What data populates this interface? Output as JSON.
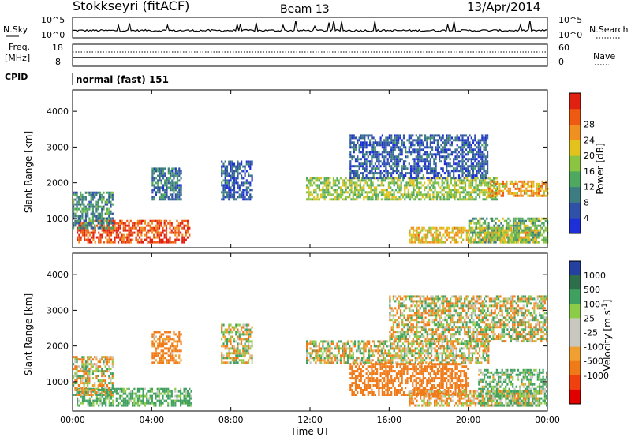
{
  "header": {
    "station": "Stokkseyri (fitACF)",
    "beam": "Beam 13",
    "date": "13/Apr/2014"
  },
  "noise_panel": {
    "left_label": "N.Sky",
    "left_ticks": [
      "10^5",
      "10^0"
    ],
    "right_ticks": [
      "10^5",
      "10^0"
    ],
    "right_label": "N.Search"
  },
  "freq_panel": {
    "label_line1": "Freq.",
    "label_line2": "[MHz]",
    "left_ticks": [
      "18",
      "8"
    ],
    "right_ticks": [
      "60",
      "0"
    ],
    "right_label": "Nave",
    "cpid_label": "CPID",
    "program": "normal (fast) 151"
  },
  "colors": {
    "power_scale": [
      "#1f2fd8",
      "#2f52a8",
      "#3d7c80",
      "#4fa860",
      "#8bc440",
      "#e3c21e",
      "#f09020",
      "#ef5a12",
      "#e02010"
    ],
    "velocity_scale": [
      "#2640a0",
      "#2f6e4a",
      "#3fa060",
      "#8ccc48",
      "#c8c8c0",
      "#c8c8c0",
      "#f0a030",
      "#f07a18",
      "#f04010",
      "#e00000"
    ],
    "ground_scatter": "#c0c0b8"
  },
  "chart_data": [
    {
      "type": "heatmap",
      "title": "",
      "xlabel": "Time UT",
      "ylabel": "Slant Range [km]",
      "x_ticks": [
        "00:00",
        "04:00",
        "08:00",
        "12:00",
        "16:00",
        "20:00",
        "00:00"
      ],
      "y_ticks": [
        "1000",
        "2000",
        "3000",
        "4000"
      ],
      "xlim_hours": [
        0,
        24
      ],
      "ylim_km": [
        180,
        4600
      ],
      "colorbar_label": "Power [dB]",
      "colorbar_ticks": [
        "4",
        "8",
        "12",
        "16",
        "20",
        "24",
        "28"
      ],
      "colorbar_range": [
        0,
        32
      ],
      "regions": [
        {
          "t0": 0.2,
          "t1": 5.9,
          "r0": 300,
          "r1": 900,
          "level": 28
        },
        {
          "t0": 0.0,
          "t1": 2.0,
          "r0": 700,
          "r1": 1700,
          "level": 10
        },
        {
          "t0": 4.0,
          "t1": 5.5,
          "r0": 1500,
          "r1": 2400,
          "level": 8
        },
        {
          "t0": 7.5,
          "t1": 9.1,
          "r0": 1500,
          "r1": 2600,
          "level": 6
        },
        {
          "t0": 11.8,
          "t1": 21.5,
          "r0": 1500,
          "r1": 2100,
          "level": 16
        },
        {
          "t0": 14.0,
          "t1": 21.0,
          "r0": 2100,
          "r1": 3300,
          "level": 6
        },
        {
          "t0": 17.0,
          "t1": 23.5,
          "r0": 300,
          "r1": 700,
          "level": 20
        },
        {
          "t0": 20.0,
          "t1": 24.0,
          "r0": 300,
          "r1": 1000,
          "level": 14
        },
        {
          "t0": 21.0,
          "t1": 24.0,
          "r0": 1600,
          "r1": 2000,
          "level": 22
        }
      ]
    },
    {
      "type": "heatmap",
      "title": "",
      "xlabel": "Time UT",
      "ylabel": "Slant Range [km]",
      "x_ticks": [
        "00:00",
        "04:00",
        "08:00",
        "12:00",
        "16:00",
        "20:00",
        "00:00"
      ],
      "y_ticks": [
        "1000",
        "2000",
        "3000",
        "4000"
      ],
      "xlim_hours": [
        0,
        24
      ],
      "ylim_km": [
        180,
        4600
      ],
      "colorbar_label": "Velocity [m s^-1]",
      "colorbar_ticks": [
        "1000",
        "500",
        "100",
        "25",
        "-25",
        "-100",
        "-500",
        "-1000"
      ],
      "colorbar_range": [
        -1000,
        1000
      ],
      "regions": [
        {
          "t0": 0.2,
          "t1": 6.0,
          "r0": 300,
          "r1": 800,
          "velocity": 200
        },
        {
          "t0": 0.0,
          "t1": 2.0,
          "r0": 600,
          "r1": 1700,
          "velocity": 0
        },
        {
          "t0": 4.0,
          "t1": 5.5,
          "r0": 1500,
          "r1": 2400,
          "velocity": -200
        },
        {
          "t0": 7.5,
          "t1": 9.1,
          "r0": 1500,
          "r1": 2600,
          "velocity": 0
        },
        {
          "t0": 11.8,
          "t1": 21.0,
          "r0": 1500,
          "r1": 2100,
          "velocity": 0
        },
        {
          "t0": 14.0,
          "t1": 20.0,
          "r0": 600,
          "r1": 1500,
          "velocity": -300
        },
        {
          "t0": 17.0,
          "t1": 23.5,
          "r0": 300,
          "r1": 700,
          "velocity": -100
        },
        {
          "t0": 20.5,
          "t1": 24.0,
          "r0": 300,
          "r1": 1300,
          "velocity": 150
        },
        {
          "t0": 16.0,
          "t1": 24.0,
          "r0": 2100,
          "r1": 3400,
          "velocity": 0
        }
      ]
    }
  ]
}
